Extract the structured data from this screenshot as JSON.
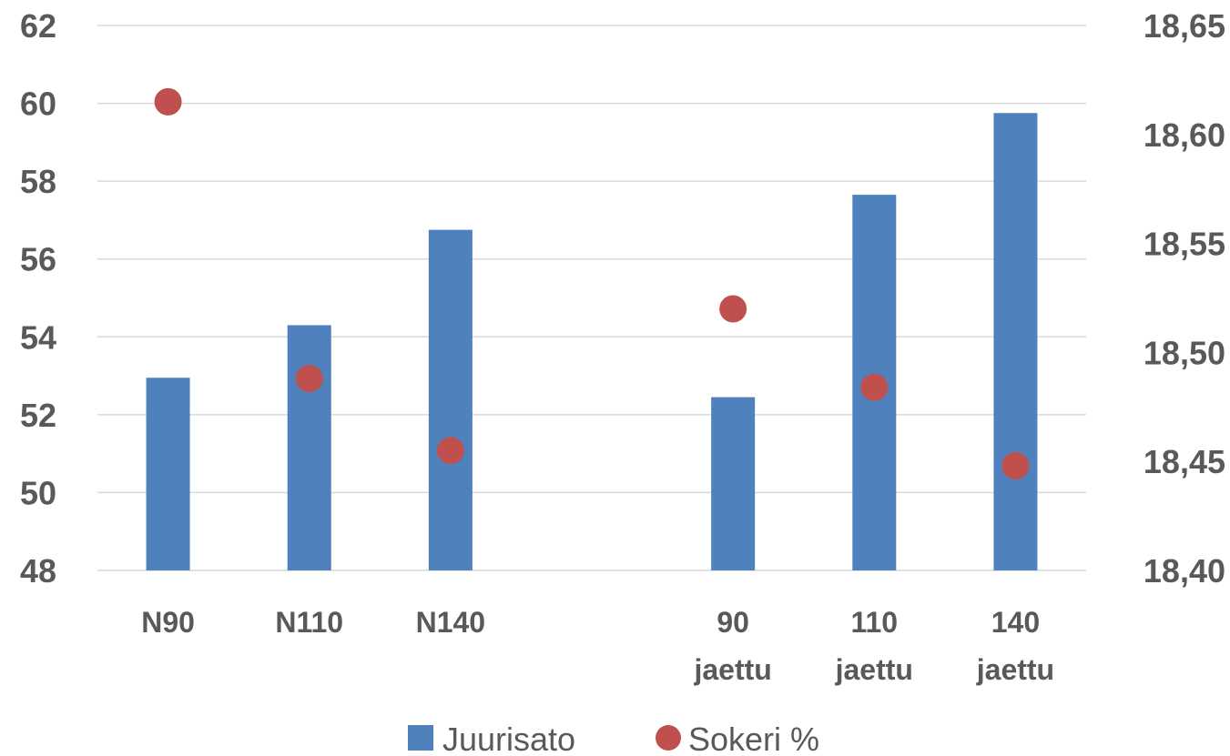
{
  "chart_data": {
    "type": "bar",
    "categories": [
      [
        "N90"
      ],
      [
        "N110"
      ],
      [
        "N140"
      ],
      [
        ""
      ],
      [
        "90",
        "jaettu"
      ],
      [
        "110",
        "jaettu"
      ],
      [
        "140",
        "jaettu"
      ]
    ],
    "series": [
      {
        "name": "Juurisato",
        "type": "bar",
        "axis": "left",
        "color": "#4f81bd",
        "values": [
          52.95,
          54.3,
          56.75,
          null,
          52.45,
          57.65,
          59.75
        ]
      },
      {
        "name": "Sokeri %",
        "type": "scatter",
        "axis": "right",
        "color": "#c0504d",
        "values": [
          18.615,
          18.488,
          18.455,
          null,
          18.52,
          18.484,
          18.448
        ]
      }
    ],
    "y_left": {
      "min": 48,
      "max": 62,
      "step": 2,
      "ticks": [
        "48",
        "50",
        "52",
        "54",
        "56",
        "58",
        "60",
        "62"
      ]
    },
    "y_right": {
      "min": 18.4,
      "max": 18.65,
      "step": 0.05,
      "ticks": [
        "18,40",
        "18,45",
        "18,50",
        "18,55",
        "18,60",
        "18,65"
      ]
    },
    "grid": true,
    "legend": "bottom"
  }
}
